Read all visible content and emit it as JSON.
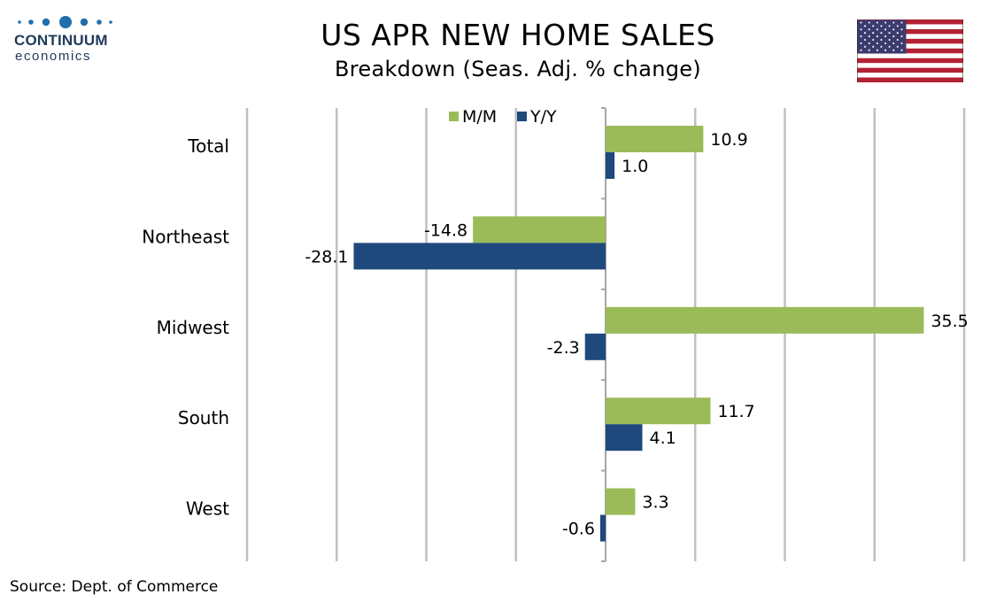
{
  "header": {
    "logo_name": "CONTINUUM",
    "logo_sub": "economics",
    "title": "US APR NEW HOME SALES",
    "subtitle": "Breakdown (Seas. Adj. % change)"
  },
  "flag_icon": "us-flag-icon",
  "footer": {
    "source": "Source: Dept. of Commerce"
  },
  "colors": {
    "mm": "#9bbb59",
    "yy": "#1f497d",
    "grid": "#c0c0c0",
    "logo": "#1f3b5a",
    "flag_red": "#b22234",
    "flag_blue": "#3c3b6e"
  },
  "chart_data": {
    "type": "bar",
    "orientation": "horizontal",
    "categories": [
      "Total",
      "Northeast",
      "Midwest",
      "South",
      "West"
    ],
    "series": [
      {
        "name": "M/M",
        "values": [
          10.9,
          -14.8,
          35.5,
          11.7,
          3.3
        ]
      },
      {
        "name": "Y/Y",
        "values": [
          1.0,
          -28.1,
          -2.3,
          4.1,
          -0.6
        ]
      }
    ],
    "value_labels": [
      [
        "10.9",
        "-14.8",
        "35.5",
        "11.7",
        "3.3"
      ],
      [
        "1.0",
        "-28.1",
        "-2.3",
        "4.1",
        "-0.6"
      ]
    ],
    "xlim": [
      -40,
      40
    ],
    "grid": true,
    "legend": "top-center",
    "title": "US APR NEW HOME SALES",
    "subtitle": "Breakdown (Seas. Adj. % change)"
  }
}
